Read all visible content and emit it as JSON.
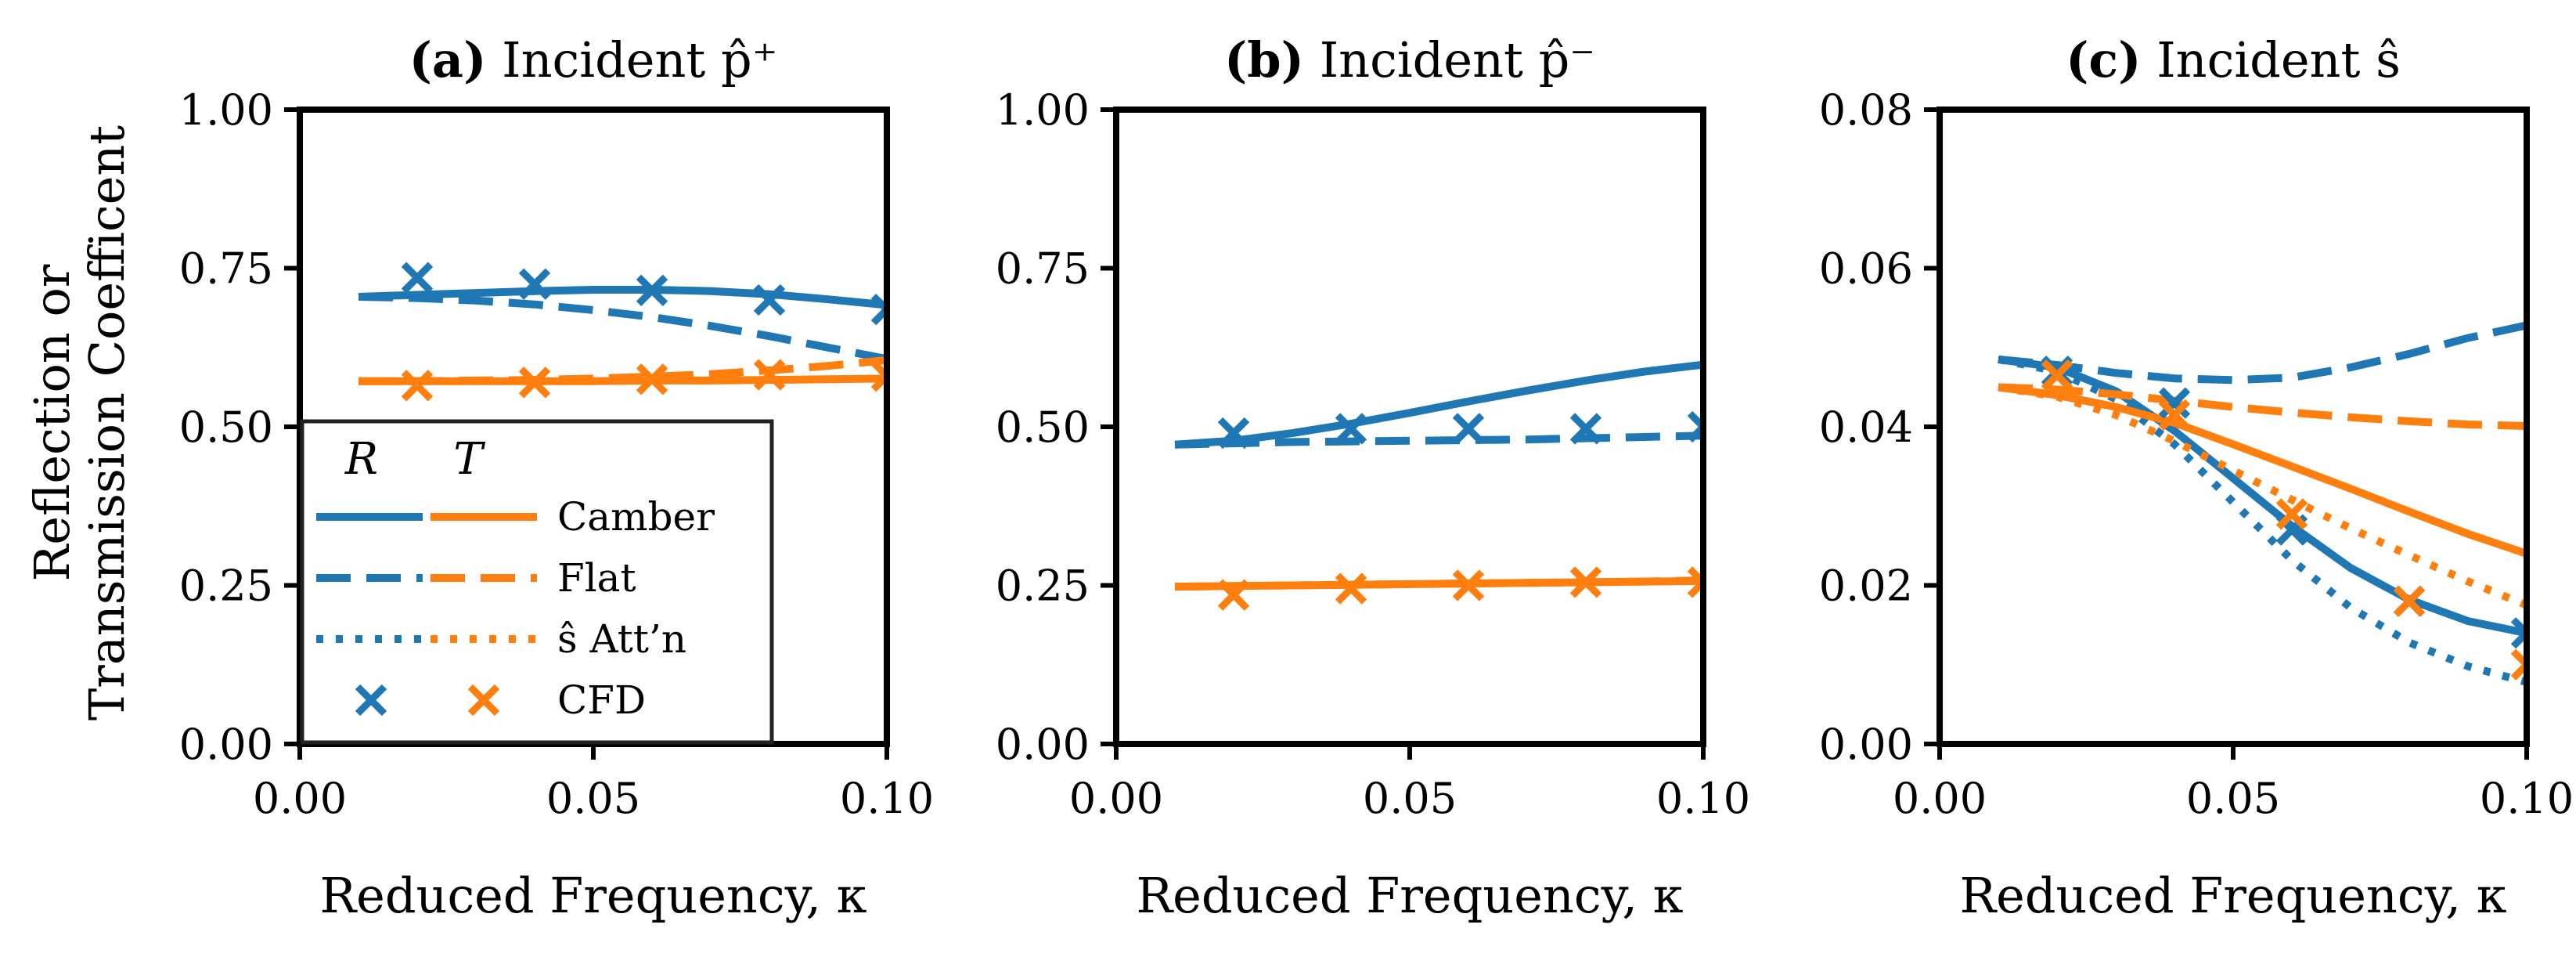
{
  "figure": {
    "ylabel_line1": "Reflection or",
    "ylabel_line2": "Transmission Coefficent",
    "colors": {
      "reflection": "#1f77b4",
      "transmission": "#ff7f0e"
    }
  },
  "legend": {
    "header_reflection": "R",
    "header_transmission": "T",
    "entries": [
      {
        "label": "Camber",
        "style": "solid"
      },
      {
        "label": "Flat",
        "style": "dashed"
      },
      {
        "label": "ŝ Att’n",
        "style": "dotted"
      },
      {
        "label": "CFD",
        "style": "marker"
      }
    ]
  },
  "chart_data": [
    {
      "type": "line",
      "title_bold": "(a)",
      "title_rest": "Incident p̂⁺",
      "xlabel": "Reduced Frequency, κ",
      "ylabel": "Reflection or Transmission Coefficent",
      "xlim": [
        0.0,
        0.1
      ],
      "ylim": [
        0.0,
        1.0
      ],
      "xticks": [
        "0.00",
        "0.05",
        "0.10"
      ],
      "yticks": [
        "0.00",
        "0.25",
        "0.50",
        "0.75",
        "1.00"
      ],
      "has_legend": true,
      "x": [
        0.01,
        0.02,
        0.03,
        0.04,
        0.05,
        0.06,
        0.07,
        0.08,
        0.09,
        0.1
      ],
      "series": [
        {
          "name": "R Camber",
          "color": "reflection",
          "style": "solid",
          "values": [
            0.705,
            0.708,
            0.711,
            0.714,
            0.716,
            0.716,
            0.714,
            0.709,
            0.701,
            0.692
          ]
        },
        {
          "name": "R Flat",
          "color": "reflection",
          "style": "dashed",
          "values": [
            0.705,
            0.703,
            0.699,
            0.693,
            0.684,
            0.673,
            0.659,
            0.643,
            0.625,
            0.607
          ]
        },
        {
          "name": "T Camber",
          "color": "transmission",
          "style": "solid",
          "values": [
            0.572,
            0.572,
            0.572,
            0.572,
            0.572,
            0.573,
            0.573,
            0.574,
            0.575,
            0.576
          ]
        },
        {
          "name": "T Flat",
          "color": "transmission",
          "style": "dashed",
          "values": [
            0.572,
            0.572,
            0.573,
            0.574,
            0.576,
            0.579,
            0.583,
            0.589,
            0.596,
            0.605
          ]
        }
      ],
      "markers": [
        {
          "name": "R CFD",
          "color": "reflection",
          "x": [
            0.02,
            0.04,
            0.06,
            0.08,
            0.1
          ],
          "values": [
            0.735,
            0.725,
            0.715,
            0.7,
            0.685
          ]
        },
        {
          "name": "T CFD",
          "color": "transmission",
          "x": [
            0.02,
            0.04,
            0.06,
            0.08,
            0.1
          ],
          "values": [
            0.565,
            0.57,
            0.575,
            0.582,
            0.58
          ]
        }
      ]
    },
    {
      "type": "line",
      "title_bold": "(b)",
      "title_rest": "Incident p̂⁻",
      "xlabel": "Reduced Frequency, κ",
      "ylabel": "",
      "xlim": [
        0.0,
        0.1
      ],
      "ylim": [
        0.0,
        1.0
      ],
      "xticks": [
        "0.00",
        "0.05",
        "0.10"
      ],
      "yticks": [
        "0.00",
        "0.25",
        "0.50",
        "0.75",
        "1.00"
      ],
      "has_legend": false,
      "x": [
        0.01,
        0.02,
        0.03,
        0.04,
        0.05,
        0.06,
        0.07,
        0.08,
        0.09,
        0.1
      ],
      "series": [
        {
          "name": "R Camber",
          "color": "reflection",
          "style": "solid",
          "values": [
            0.472,
            0.478,
            0.49,
            0.505,
            0.522,
            0.54,
            0.557,
            0.573,
            0.587,
            0.598
          ]
        },
        {
          "name": "R Flat",
          "color": "reflection",
          "style": "dashed",
          "values": [
            0.472,
            0.474,
            0.476,
            0.477,
            0.478,
            0.479,
            0.48,
            0.482,
            0.484,
            0.486
          ]
        },
        {
          "name": "T Camber",
          "color": "transmission",
          "style": "solid",
          "values": [
            0.248,
            0.249,
            0.25,
            0.251,
            0.252,
            0.253,
            0.254,
            0.255,
            0.256,
            0.257
          ]
        },
        {
          "name": "T Flat",
          "color": "transmission",
          "style": "dashed",
          "values": [
            0.248,
            0.249,
            0.25,
            0.251,
            0.252,
            0.253,
            0.254,
            0.255,
            0.256,
            0.258
          ]
        }
      ],
      "markers": [
        {
          "name": "R CFD",
          "color": "reflection",
          "x": [
            0.02,
            0.04,
            0.06,
            0.08,
            0.1
          ],
          "values": [
            0.49,
            0.497,
            0.497,
            0.497,
            0.5
          ]
        },
        {
          "name": "T CFD",
          "color": "transmission",
          "x": [
            0.02,
            0.04,
            0.06,
            0.08,
            0.1
          ],
          "values": [
            0.235,
            0.245,
            0.25,
            0.255,
            0.255
          ]
        }
      ]
    },
    {
      "type": "line",
      "title_bold": "(c)",
      "title_rest": "Incident ŝ",
      "xlabel": "Reduced Frequency, κ",
      "ylabel": "",
      "xlim": [
        0.0,
        0.1
      ],
      "ylim": [
        0.0,
        0.08
      ],
      "xticks": [
        "0.00",
        "0.05",
        "0.10"
      ],
      "yticks": [
        "0.00",
        "0.02",
        "0.04",
        "0.06",
        "0.08"
      ],
      "has_legend": false,
      "x": [
        0.01,
        0.02,
        0.03,
        0.04,
        0.05,
        0.06,
        0.07,
        0.08,
        0.09,
        0.1
      ],
      "series": [
        {
          "name": "R Camber",
          "color": "reflection",
          "style": "solid",
          "values": [
            0.0485,
            0.0475,
            0.0445,
            0.0395,
            0.0335,
            0.0275,
            0.0222,
            0.0182,
            0.0155,
            0.014
          ]
        },
        {
          "name": "R Flat",
          "color": "reflection",
          "style": "dashed",
          "values": [
            0.0485,
            0.0478,
            0.0468,
            0.0461,
            0.0459,
            0.0462,
            0.0475,
            0.0492,
            0.0512,
            0.0528
          ]
        },
        {
          "name": "R ŝ Att'n",
          "color": "reflection",
          "style": "dotted",
          "values": [
            0.0485,
            0.047,
            0.0435,
            0.0378,
            0.0305,
            0.0232,
            0.0172,
            0.0128,
            0.0098,
            0.0078
          ]
        },
        {
          "name": "T Camber",
          "color": "transmission",
          "style": "solid",
          "values": [
            0.045,
            0.044,
            0.0425,
            0.0405,
            0.0378,
            0.035,
            0.0322,
            0.0293,
            0.0265,
            0.024
          ]
        },
        {
          "name": "T Flat",
          "color": "transmission",
          "style": "dashed",
          "values": [
            0.045,
            0.0447,
            0.0441,
            0.0433,
            0.0425,
            0.0418,
            0.0412,
            0.0407,
            0.0403,
            0.0401
          ]
        },
        {
          "name": "T ŝ Att'n",
          "color": "transmission",
          "style": "dotted",
          "values": [
            0.045,
            0.0438,
            0.0415,
            0.0382,
            0.0345,
            0.0308,
            0.0272,
            0.0238,
            0.0205,
            0.0175
          ]
        }
      ],
      "markers": [
        {
          "name": "R CFD",
          "color": "reflection",
          "x": [
            0.02,
            0.04,
            0.06,
            0.08,
            0.1
          ],
          "values": [
            0.047,
            0.043,
            0.027,
            0.018,
            0.014
          ]
        },
        {
          "name": "T CFD",
          "color": "transmission",
          "x": [
            0.02,
            0.04,
            0.06,
            0.08,
            0.1
          ],
          "values": [
            0.0465,
            0.0415,
            0.029,
            0.018,
            0.01
          ]
        }
      ]
    }
  ]
}
